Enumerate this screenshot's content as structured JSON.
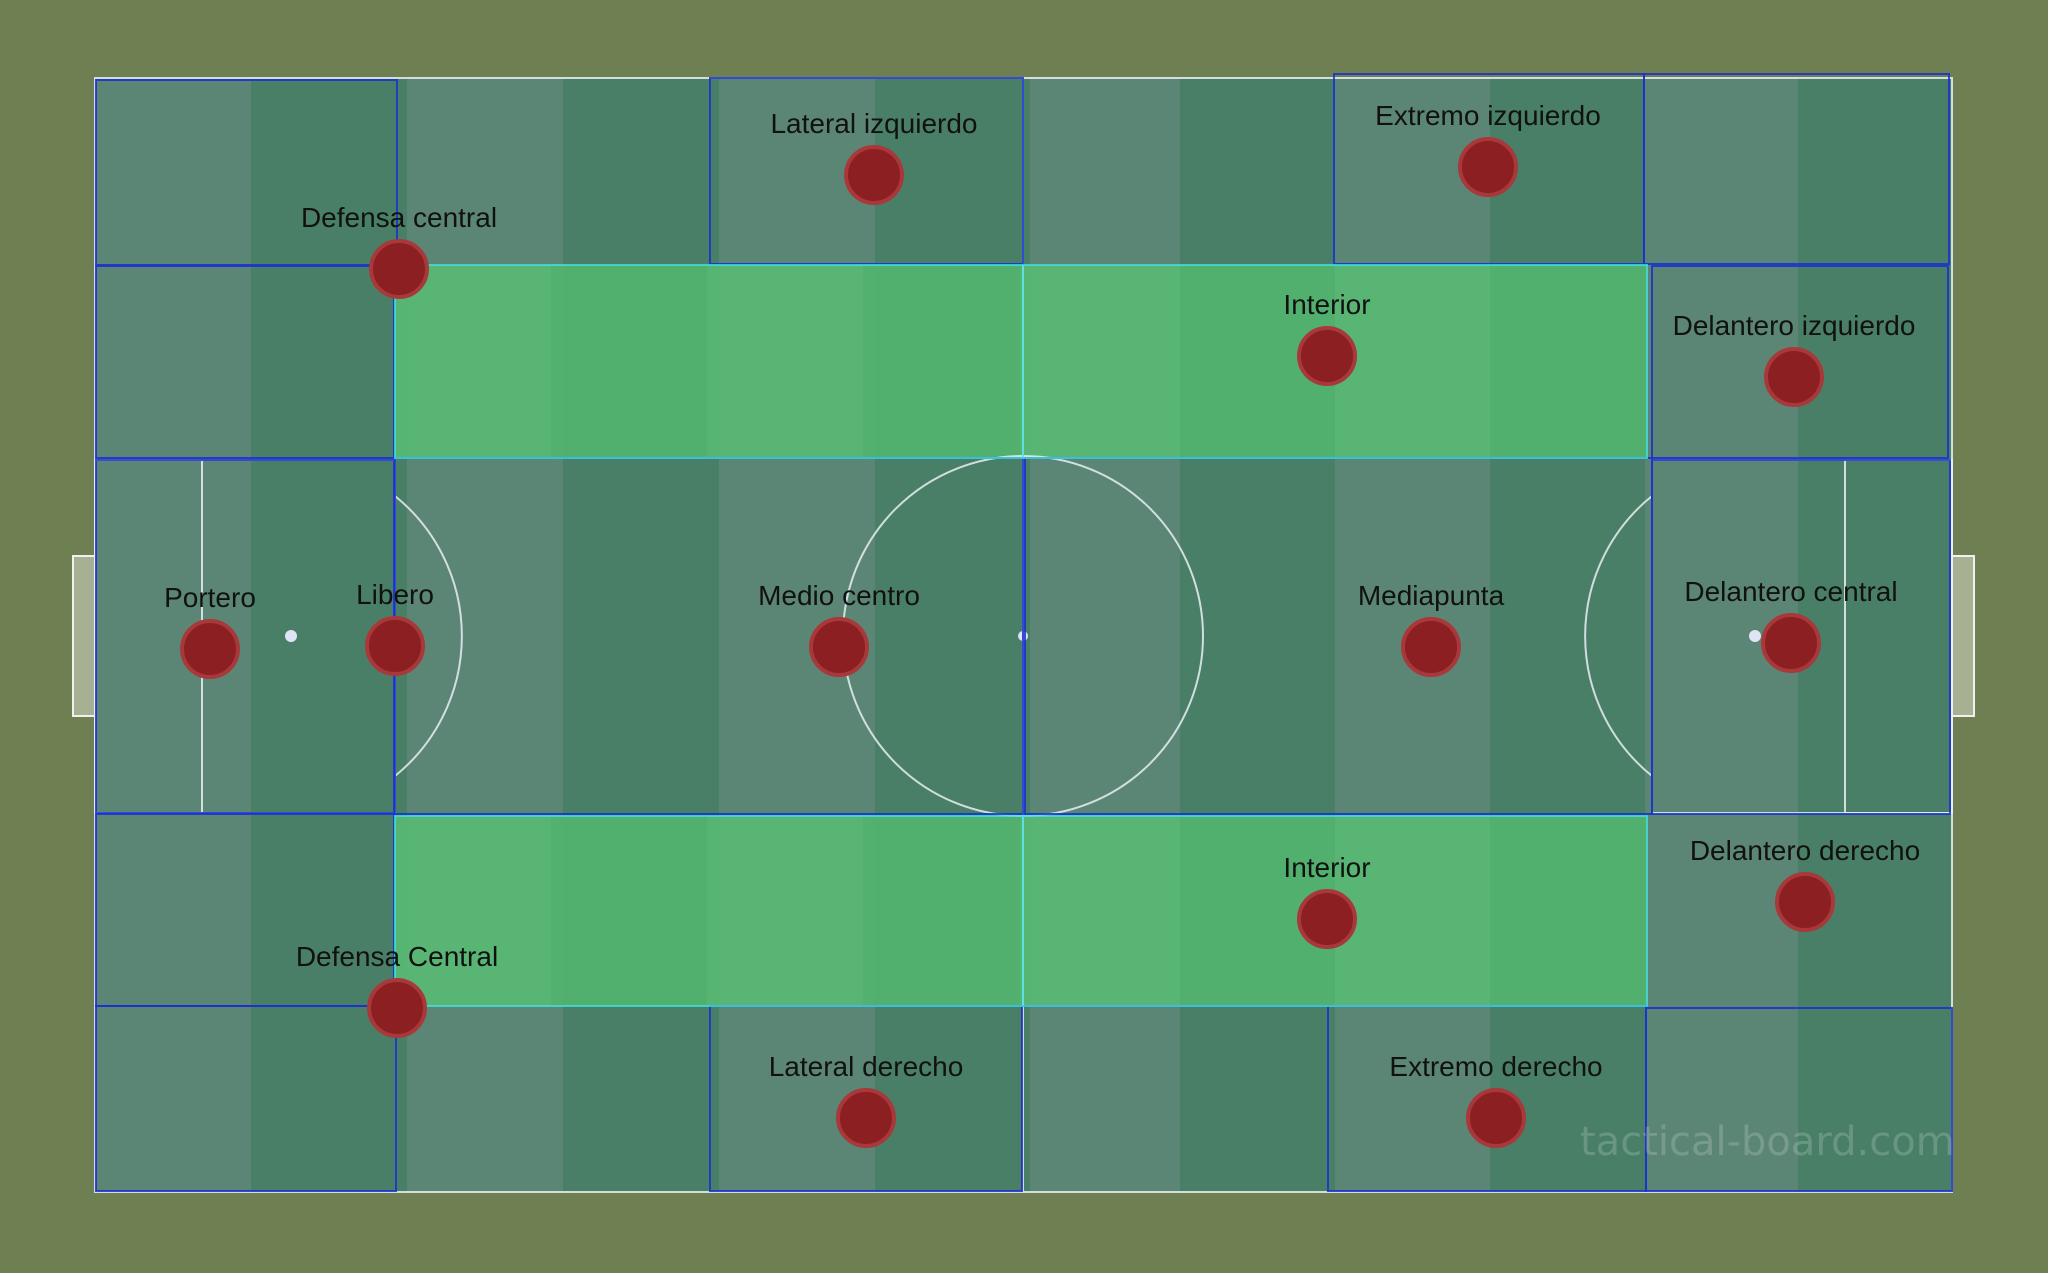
{
  "board": {
    "watermark": "tactical-board.com",
    "colors": {
      "background": "#6e7f52",
      "pitch_light": "#5b8675",
      "pitch_dark": "#497f67",
      "zone_highlight_light": "#5eb977",
      "zone_highlight_dark": "#4ab067",
      "zone_border": "#1a30d0",
      "zone_highlight_border": "#40e0e0",
      "player": "#8b1f22",
      "player_ring": "#a8383a",
      "marking_line": "#e8eef5"
    }
  },
  "players": [
    {
      "id": "portero",
      "label": "Portero"
    },
    {
      "id": "libero",
      "label": "Libero"
    },
    {
      "id": "defensa-central-izq",
      "label": "Defensa central"
    },
    {
      "id": "defensa-central-der",
      "label": "Defensa Central"
    },
    {
      "id": "lateral-izquierdo",
      "label": "Lateral izquierdo"
    },
    {
      "id": "lateral-derecho",
      "label": "Lateral derecho"
    },
    {
      "id": "medio-centro",
      "label": "Medio centro"
    },
    {
      "id": "interior-izq",
      "label": "Interior"
    },
    {
      "id": "interior-der",
      "label": "Interior"
    },
    {
      "id": "mediapunta",
      "label": "Mediapunta"
    },
    {
      "id": "extremo-izquierdo",
      "label": "Extremo izquierdo"
    },
    {
      "id": "extremo-derecho",
      "label": "Extremo derecho"
    },
    {
      "id": "delantero-izquierdo",
      "label": "Delantero izquierdo"
    },
    {
      "id": "delantero-central",
      "label": "Delantero central"
    },
    {
      "id": "delantero-derecho",
      "label": "Delantero derecho"
    }
  ]
}
